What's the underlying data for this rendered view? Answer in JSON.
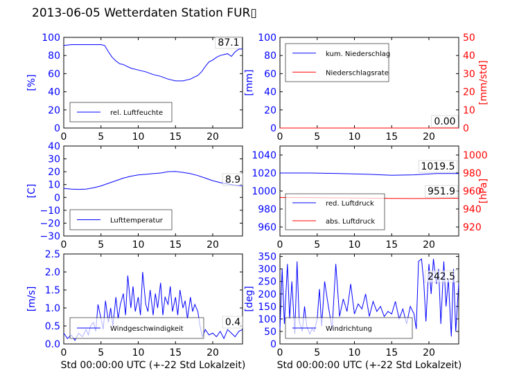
{
  "title": "2013-06-05 Wetterdaten Station FUR▯",
  "colors": {
    "primary": "#0000ff",
    "secondary": "#ff0000",
    "axis": "#000000"
  },
  "chart_data": [
    {
      "type": "line",
      "ylabel": "[%]",
      "xlim": [
        0,
        24
      ],
      "ylim": [
        0,
        100
      ],
      "xticks": [
        "0",
        "5",
        "10",
        "15",
        "20"
      ],
      "yticks": [
        "0",
        "20",
        "40",
        "60",
        "80",
        "100"
      ],
      "legend": {
        "placement": "lower-center",
        "entries": [
          "rel. Luftfeuchte"
        ]
      },
      "annotation": "87.1",
      "series": [
        {
          "name": "rel. Luftfeuchte",
          "x": [
            0,
            1,
            2,
            3,
            4,
            5,
            5.5,
            6,
            6.5,
            7,
            7.5,
            8,
            8.5,
            9,
            10,
            11,
            12,
            13,
            14,
            15,
            16,
            17,
            17.5,
            18,
            18.5,
            19,
            19.5,
            20,
            20.5,
            21,
            21.5,
            22,
            22.5,
            23,
            23.5,
            24
          ],
          "y": [
            91,
            92,
            92,
            92,
            92,
            92,
            91,
            84,
            78,
            74,
            71,
            70,
            68,
            66,
            64,
            62,
            59,
            57,
            54,
            52,
            52,
            54,
            56,
            58,
            62,
            68,
            73,
            75,
            78,
            80,
            81,
            82,
            79,
            84,
            87,
            87.1
          ]
        }
      ]
    },
    {
      "type": "line",
      "ylabel": "[mm]",
      "y2label": "[mm/std]",
      "xlim": [
        0,
        24
      ],
      "ylim": [
        0,
        100
      ],
      "y2lim": [
        0,
        50
      ],
      "xticks": [
        "0",
        "5",
        "10",
        "15",
        "20"
      ],
      "yticks": [
        "0",
        "20",
        "40",
        "60",
        "80",
        "100"
      ],
      "y2ticks": [
        "0",
        "10",
        "20",
        "30",
        "40",
        "50"
      ],
      "legend": {
        "placement": "top-left",
        "entries": [
          "kum. Niederschlag",
          "Niederschlagsrate"
        ]
      },
      "annotation": "0.00",
      "series": [
        {
          "name": "kum. Niederschlag",
          "x": [
            0,
            24
          ],
          "y": [
            0,
            0
          ]
        },
        {
          "name": "Niederschlagsrate",
          "x": [
            0,
            24
          ],
          "y": [
            0,
            0
          ]
        }
      ]
    },
    {
      "type": "line",
      "ylabel": "[C]",
      "xlim": [
        0,
        24
      ],
      "ylim": [
        -30,
        40
      ],
      "xticks": [
        "0",
        "5",
        "10",
        "15",
        "20"
      ],
      "yticks": [
        "−30",
        "−20",
        "−10",
        "0",
        "10",
        "20",
        "30",
        "40"
      ],
      "legend": {
        "placement": "lower-center",
        "entries": [
          "Lufttemperatur"
        ]
      },
      "annotation": "8.9",
      "series": [
        {
          "name": "Lufttemperatur",
          "x": [
            0,
            1,
            2,
            3,
            4,
            5,
            6,
            7,
            8,
            9,
            10,
            11,
            12,
            13,
            14,
            15,
            16,
            17,
            18,
            19,
            20,
            21,
            22,
            23,
            24
          ],
          "y": [
            7,
            6.5,
            6.3,
            6.5,
            7.5,
            9,
            11,
            13,
            15,
            16.5,
            17.5,
            18,
            18.5,
            19,
            20,
            20.2,
            19.5,
            18.5,
            17,
            15,
            13,
            11.5,
            10.5,
            9.5,
            8.9
          ]
        }
      ]
    },
    {
      "type": "line",
      "ylabel": "",
      "y2label": "[hPa]",
      "xlim": [
        0,
        24
      ],
      "ylim": [
        950,
        1050
      ],
      "y2lim": [
        910,
        1010
      ],
      "xticks": [
        "0",
        "5",
        "10",
        "15",
        "20"
      ],
      "yticks": [
        "960",
        "980",
        "1000",
        "1020",
        "1040"
      ],
      "y2ticks": [
        "920",
        "940",
        "960",
        "980",
        "1000"
      ],
      "legend": {
        "placement": "lower-left",
        "entries": [
          "red. Luftdruck",
          "abs. Luftdruck"
        ]
      },
      "annotations": [
        "1019.5",
        "951.9"
      ],
      "series": [
        {
          "name": "red. Luftdruck",
          "x": [
            0,
            4,
            8,
            12,
            15,
            18,
            21,
            24
          ],
          "y": [
            1020,
            1020,
            1019.5,
            1018.5,
            1017.5,
            1018,
            1019.5,
            1019.5
          ]
        },
        {
          "name": "abs. Luftdruck",
          "x": [
            0,
            4,
            8,
            12,
            15,
            18,
            21,
            24
          ],
          "y": [
            952.8,
            952.6,
            952.3,
            952,
            951.8,
            951.6,
            951.8,
            951.9
          ]
        }
      ]
    },
    {
      "type": "line",
      "ylabel": "[m/s]",
      "xlabel": "Std 00:00:00 UTC (+-22 Std Lokalzeit)",
      "xlim": [
        0,
        24
      ],
      "ylim": [
        0,
        2.5
      ],
      "xticks": [
        "0",
        "5",
        "10",
        "15",
        "20"
      ],
      "yticks": [
        "0.0",
        "0.5",
        "1.0",
        "1.5",
        "2.0",
        "2.5"
      ],
      "legend": {
        "placement": "lower-center",
        "entries": [
          "Windgeschwindigkeit"
        ]
      },
      "annotation": "0.4",
      "series": [
        {
          "name": "Windgeschwindigkeit",
          "x": [
            0,
            0.5,
            1,
            1.5,
            2,
            2.5,
            3,
            3.3,
            3.6,
            4,
            4.3,
            4.6,
            5,
            5.3,
            5.6,
            6,
            6.3,
            6.6,
            7,
            7.3,
            7.6,
            8,
            8.3,
            8.6,
            9,
            9.3,
            9.6,
            10,
            10.3,
            10.6,
            11,
            11.3,
            11.6,
            12,
            12.3,
            12.6,
            13,
            13.3,
            13.6,
            14,
            14.3,
            14.6,
            15,
            15.3,
            15.6,
            16,
            16.3,
            16.6,
            17,
            17.3,
            17.6,
            18,
            18.3,
            18.6,
            19,
            19.5,
            20,
            20.5,
            21,
            21.5,
            22,
            22.5,
            23,
            23.5,
            24
          ],
          "y": [
            0.3,
            0.15,
            0.25,
            0.1,
            0.3,
            0.2,
            0.4,
            0.25,
            0.5,
            0.6,
            0.35,
            1.1,
            0.7,
            0.4,
            1.2,
            0.6,
            1.0,
            0.5,
            1.3,
            0.7,
            1.1,
            1.4,
            0.8,
            1.9,
            1.0,
            1.6,
            0.9,
            1.3,
            0.8,
            2.0,
            1.1,
            0.9,
            1.5,
            0.8,
            1.4,
            1.0,
            1.7,
            0.8,
            1.3,
            1.1,
            1.6,
            0.9,
            1.3,
            0.8,
            1.5,
            1.0,
            1.2,
            0.7,
            1.3,
            0.9,
            1.1,
            0.9,
            0.5,
            0.2,
            0.4,
            0.25,
            0.3,
            0.2,
            0.35,
            0.15,
            0.4,
            0.3,
            0.2,
            0.35,
            0.4
          ]
        }
      ]
    },
    {
      "type": "line",
      "ylabel": "[deg]",
      "xlabel": "Std 00:00:00 UTC (+-22 Std Lokalzeit)",
      "xlim": [
        0,
        24
      ],
      "ylim": [
        0,
        360
      ],
      "xticks": [
        "0",
        "5",
        "10",
        "15",
        "20"
      ],
      "yticks": [
        "0",
        "50",
        "100",
        "150",
        "200",
        "250",
        "300",
        "350"
      ],
      "legend": {
        "placement": "lower-center",
        "entries": [
          "Windrichtung"
        ]
      },
      "annotation": "242.5",
      "series": [
        {
          "name": "Windrichtung",
          "x": [
            0,
            0.3,
            0.6,
            1,
            1.3,
            1.6,
            2,
            2.3,
            2.6,
            3,
            3.3,
            3.6,
            4,
            4.3,
            4.6,
            5,
            5.3,
            5.6,
            6,
            6.5,
            7,
            7.5,
            8,
            8.5,
            9,
            9.5,
            10,
            10.5,
            11,
            11.5,
            12,
            12.5,
            13,
            13.5,
            14,
            14.5,
            15,
            15.5,
            16,
            16.5,
            17,
            17.5,
            18,
            18.3,
            18.6,
            19,
            19.3,
            19.6,
            20,
            20.3,
            20.6,
            21,
            21.3,
            21.6,
            22,
            22.3,
            22.6,
            23,
            23.3,
            23.6,
            24
          ],
          "y": [
            60,
            300,
            80,
            320,
            100,
            250,
            40,
            330,
            90,
            50,
            150,
            70,
            40,
            60,
            50,
            100,
            220,
            70,
            250,
            150,
            60,
            320,
            110,
            180,
            130,
            240,
            120,
            160,
            140,
            200,
            110,
            170,
            130,
            150,
            110,
            130,
            120,
            170,
            100,
            140,
            80,
            150,
            120,
            60,
            330,
            340,
            250,
            90,
            320,
            200,
            340,
            240,
            300,
            80,
            330,
            150,
            260,
            30,
            300,
            50,
            242.5
          ]
        }
      ]
    }
  ]
}
